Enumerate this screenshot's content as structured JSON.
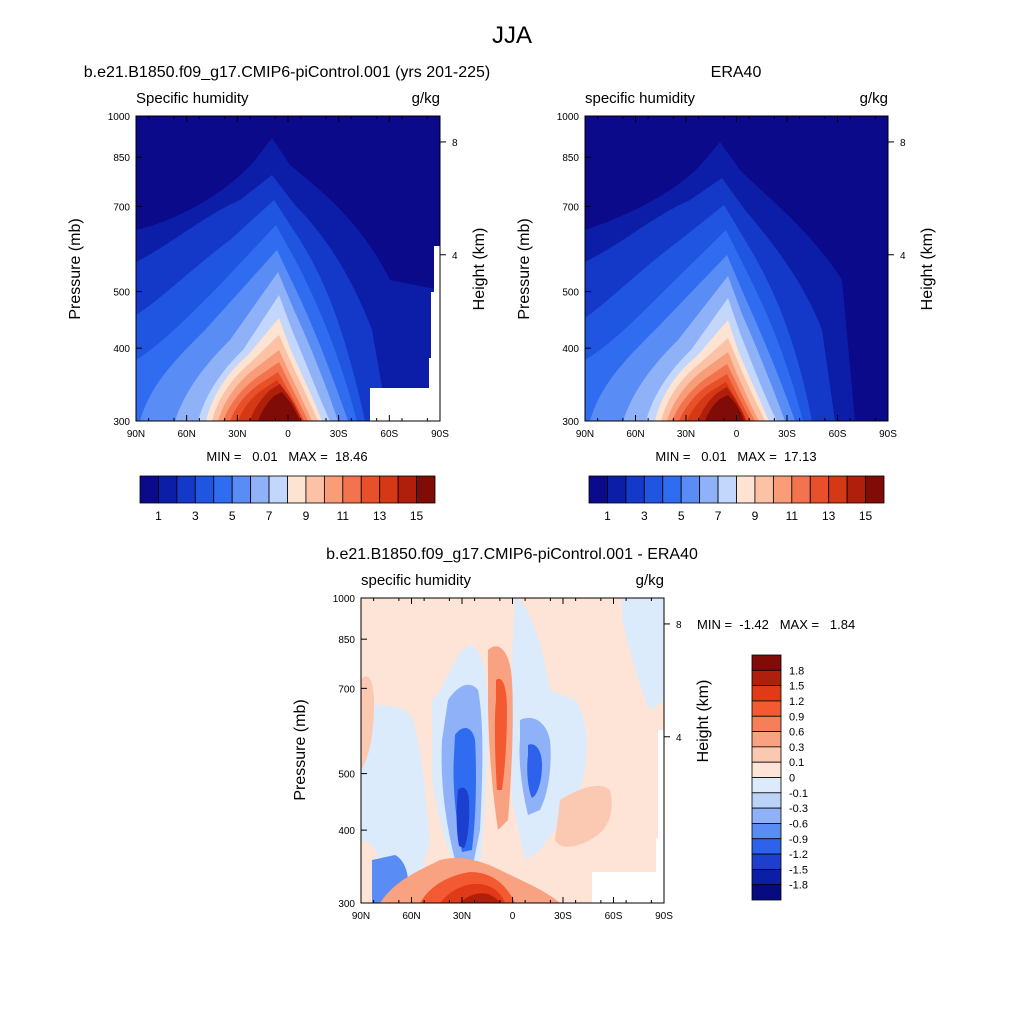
{
  "page_title": "JJA",
  "chart_data": [
    {
      "type": "heatmap",
      "title": "b.e21.B1850.f09_g17.CMIP6-piControl.001 (yrs 201-225)",
      "left_label": "Specific humidity",
      "right_label": "g/kg",
      "ylabel": "Pressure (mb)",
      "y2label": "Height (km)",
      "x_ticks": [
        "90N",
        "60N",
        "30N",
        "0",
        "30S",
        "60S",
        "90S"
      ],
      "y_ticks": [
        "300",
        "400",
        "500",
        "700",
        "850",
        "1000"
      ],
      "y2_ticks": [
        "8",
        "4"
      ],
      "stats": "MIN =   0.01   MAX =  18.46",
      "colorbar_labels": [
        "1",
        "3",
        "5",
        "7",
        "9",
        "11",
        "13",
        "15"
      ],
      "max_value": 18.46,
      "min_value": 0.01
    },
    {
      "type": "heatmap",
      "title": "ERA40",
      "left_label": "specific humidity",
      "right_label": "g/kg",
      "ylabel": "Pressure (mb)",
      "y2label": "Height (km)",
      "x_ticks": [
        "90N",
        "60N",
        "30N",
        "0",
        "30S",
        "60S",
        "90S"
      ],
      "y_ticks": [
        "300",
        "400",
        "500",
        "700",
        "850",
        "1000"
      ],
      "y2_ticks": [
        "8",
        "4"
      ],
      "stats": "MIN =   0.01   MAX =  17.13",
      "colorbar_labels": [
        "1",
        "3",
        "5",
        "7",
        "9",
        "11",
        "13",
        "15"
      ],
      "max_value": 17.13,
      "min_value": 0.01
    },
    {
      "type": "heatmap",
      "title": "b.e21.B1850.f09_g17.CMIP6-piControl.001 - ERA40",
      "left_label": "specific humidity",
      "right_label": "g/kg",
      "ylabel": "Pressure (mb)",
      "y2label": "Height (km)",
      "x_ticks": [
        "90N",
        "60N",
        "30N",
        "0",
        "30S",
        "60S",
        "90S"
      ],
      "y_ticks": [
        "300",
        "400",
        "500",
        "700",
        "850",
        "1000"
      ],
      "y2_ticks": [
        "8",
        "4"
      ],
      "stats": "MIN =  -1.42   MAX =   1.84",
      "colorbar_labels": [
        "1.8",
        "1.5",
        "1.2",
        "0.9",
        "0.6",
        "0.3",
        "0.1",
        "0",
        "-0.1",
        "-0.3",
        "-0.6",
        "-0.9",
        "-1.2",
        "-1.5",
        "-1.8"
      ],
      "max_value": 1.84,
      "min_value": -1.42
    }
  ],
  "colors": {
    "seq": [
      "#0a0a8a",
      "#0c1ea8",
      "#1438c8",
      "#1f55e0",
      "#2f6cf0",
      "#5a8cf5",
      "#8fb1f7",
      "#c3d6fb",
      "#fce3d2",
      "#fbc2a6",
      "#f99c78",
      "#f4734f",
      "#e8502a",
      "#d43815",
      "#b01e0c",
      "#7f0c06"
    ],
    "div": [
      "#7f0c06",
      "#b01e0c",
      "#e03a18",
      "#f45a32",
      "#f67e58",
      "#f8a282",
      "#fbc9b1",
      "#fde4d6",
      "#dcebfb",
      "#bcd3f8",
      "#8fb1f7",
      "#5a8cf5",
      "#2f62ec",
      "#1c3fd0",
      "#0c1ea8",
      "#080a80"
    ]
  }
}
